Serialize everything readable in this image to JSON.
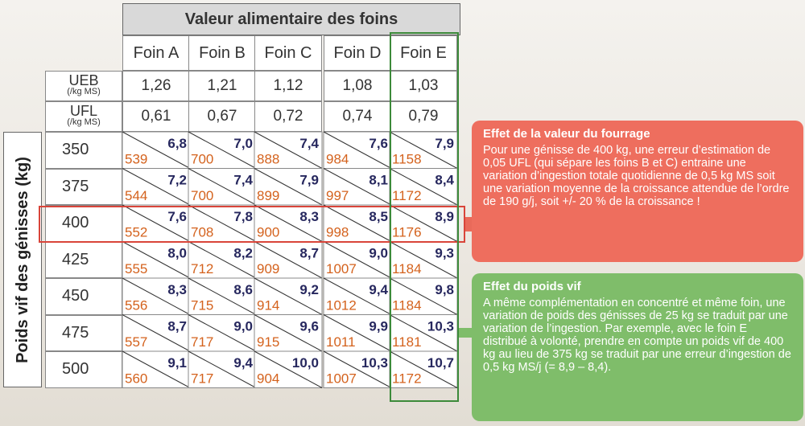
{
  "table": {
    "title": "Valeur alimentaire des foins",
    "columns": [
      "Foin A",
      "Foin B",
      "Foin C",
      "Foin D",
      "Foin E"
    ],
    "side_label": "Poids vif des génisses (kg)",
    "feed_rows": [
      {
        "label": "UEB",
        "unit": "(/kg MS)",
        "values": [
          "1,26",
          "1,21",
          "1,12",
          "1,08",
          "1,03"
        ]
      },
      {
        "label": "UFL",
        "unit": "(/kg MS)",
        "values": [
          "0,61",
          "0,67",
          "0,72",
          "0,74",
          "0,79"
        ]
      }
    ],
    "weight_rows": [
      {
        "weight": "350",
        "ingestion": [
          "6,8",
          "7,0",
          "7,4",
          "7,6",
          "7,9"
        ],
        "growth": [
          "539",
          "700",
          "888",
          "984",
          "1158"
        ]
      },
      {
        "weight": "375",
        "ingestion": [
          "7,2",
          "7,4",
          "7,9",
          "8,1",
          "8,4"
        ],
        "growth": [
          "544",
          "700",
          "899",
          "997",
          "1172"
        ]
      },
      {
        "weight": "400",
        "ingestion": [
          "7,6",
          "7,8",
          "8,3",
          "8,5",
          "8,9"
        ],
        "growth": [
          "552",
          "708",
          "900",
          "998",
          "1176"
        ]
      },
      {
        "weight": "425",
        "ingestion": [
          "8,0",
          "8,2",
          "8,7",
          "9,0",
          "9,3"
        ],
        "growth": [
          "555",
          "712",
          "909",
          "1007",
          "1184"
        ]
      },
      {
        "weight": "450",
        "ingestion": [
          "8,3",
          "8,6",
          "9,2",
          "9,4",
          "9,8"
        ],
        "growth": [
          "556",
          "715",
          "914",
          "1012",
          "1184"
        ]
      },
      {
        "weight": "475",
        "ingestion": [
          "8,7",
          "9,0",
          "9,6",
          "9,9",
          "10,3"
        ],
        "growth": [
          "557",
          "717",
          "915",
          "1011",
          "1181"
        ]
      },
      {
        "weight": "500",
        "ingestion": [
          "9,1",
          "9,4",
          "10,0",
          "10,3",
          "10,7"
        ],
        "growth": [
          "560",
          "717",
          "904",
          "1007",
          "1172"
        ]
      }
    ]
  },
  "box_forage": {
    "title": "Effet de la valeur du fourrage",
    "text": "Pour une génisse de 400 kg, une erreur d’estimation de 0,05 UFL (qui sépare les foins B et C) entraine une variation d’ingestion totale quotidienne de 0,5 kg MS soit une variation moyenne de la croissance attendue de l’ordre de 190 g/j, soit +/- 20 % de la croissance !"
  },
  "box_weight": {
    "title": "Effet du poids vif",
    "text": "A même complémentation en concentré et même foin, une variation de poids des génisses de 25 kg se traduit par une variation de l’ingestion. Par exemple, avec le foin E distribué à volonté, prendre en compte un poids vif de 400 kg au lieu de 375 kg se traduit par une erreur d’ingestion de 0,5 kg MS/j (= 8,9 – 8,4)."
  },
  "colors": {
    "ingestion": "#26275e",
    "growth": "#d4621d",
    "highlight_row": "#d9453a",
    "highlight_col": "#3c8a3a",
    "box_forage": "#ee6e5e",
    "box_weight": "#7fbd6a"
  }
}
